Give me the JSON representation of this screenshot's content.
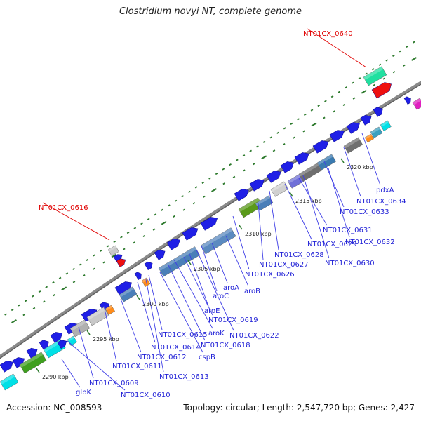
{
  "title": "Clostridium novyi NT, complete genome",
  "footer": {
    "accession": "Accession: NC_008593",
    "info": "Topology: circular; Length: 2,547,720 bp; Genes: 2,427"
  },
  "colors": {
    "backbone": "#8a8a8a",
    "gene_forward": "#1f1fe6",
    "tick": "#2d7a2d",
    "label_normal": "#1f1fd6",
    "label_highlight": "#e00000",
    "leader_normal": "#3f3fe6",
    "leader_highlight": "#e00000"
  },
  "scale_labels": [
    "2290 kbp",
    "2295 kbp",
    "2300 kbp",
    "2305 kbp",
    "2310 kbp",
    "2315 kbp",
    "2320 kbp"
  ],
  "gene_labels": [
    {
      "text": "NT01CX_0640",
      "color": "red"
    },
    {
      "text": "NT01CX_0616",
      "color": "red"
    },
    {
      "text": "pdxA",
      "color": "blue"
    },
    {
      "text": "NT01CX_0634",
      "color": "blue"
    },
    {
      "text": "NT01CX_0633",
      "color": "blue"
    },
    {
      "text": "NT01CX_0631",
      "color": "blue"
    },
    {
      "text": "NT01CX_0632",
      "color": "blue"
    },
    {
      "text": "NT01CX_0629",
      "color": "blue"
    },
    {
      "text": "NT01CX_0628",
      "color": "blue"
    },
    {
      "text": "NT01CX_0630",
      "color": "blue"
    },
    {
      "text": "NT01CX_0627",
      "color": "blue"
    },
    {
      "text": "NT01CX_0626",
      "color": "blue"
    },
    {
      "text": "aroA",
      "color": "blue"
    },
    {
      "text": "aroB",
      "color": "blue"
    },
    {
      "text": "aroC",
      "color": "blue"
    },
    {
      "text": "aroE",
      "color": "blue"
    },
    {
      "text": "NT01CX_0619",
      "color": "blue"
    },
    {
      "text": "aroK",
      "color": "blue"
    },
    {
      "text": "NT01CX_0622",
      "color": "blue"
    },
    {
      "text": "NT01CX_0615",
      "color": "blue"
    },
    {
      "text": "NT01CX_0618",
      "color": "blue"
    },
    {
      "text": "NT01CX_0614",
      "color": "blue"
    },
    {
      "text": "cspB",
      "color": "blue"
    },
    {
      "text": "NT01CX_0612",
      "color": "blue"
    },
    {
      "text": "NT01CX_0611",
      "color": "blue"
    },
    {
      "text": "NT01CX_0613",
      "color": "blue"
    },
    {
      "text": "NT01CX_0609",
      "color": "blue"
    },
    {
      "text": "NT01CX_0610",
      "color": "blue"
    },
    {
      "text": "glpK",
      "color": "blue"
    }
  ]
}
